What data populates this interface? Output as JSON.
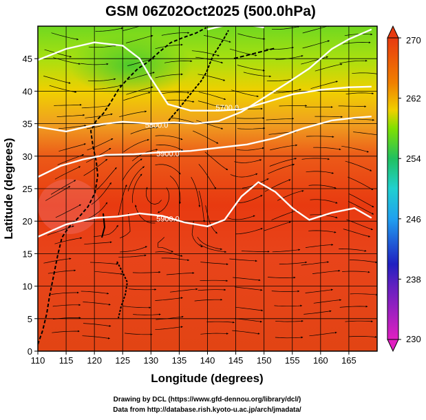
{
  "chart_data": {
    "type": "heatmap",
    "title": "GSM 06Z02Oct2025 (500.0hPa)",
    "xlabel": "Longitude (degrees)",
    "ylabel": "Latitude  (degrees)",
    "xlim": [
      110,
      170
    ],
    "ylim": [
      0,
      50
    ],
    "x_ticks": [
      "110",
      "115",
      "120",
      "125",
      "130",
      "135",
      "140",
      "145",
      "150",
      "155",
      "160",
      "165"
    ],
    "y_ticks": [
      "0",
      "5",
      "10",
      "15",
      "20",
      "25",
      "30",
      "35",
      "40",
      "45"
    ],
    "colorbar": {
      "label_values": [
        230,
        238,
        246,
        254,
        262,
        270
      ],
      "labels": [
        "230",
        "238",
        "246",
        "254",
        "262",
        "270"
      ],
      "range": [
        230,
        270
      ],
      "colors": [
        "#e020c0",
        "#2020c0",
        "#20a0f0",
        "#20c060",
        "#80e000",
        "#f0d000",
        "#f08000",
        "#e83a10"
      ]
    },
    "temperature_field_K": {
      "note": "approximate temperature read from shading",
      "lat_bands": [
        {
          "lat": 5,
          "value": 266
        },
        {
          "lat": 15,
          "value": 266
        },
        {
          "lat": 25,
          "value": 267
        },
        {
          "lat": 32,
          "value": 265
        },
        {
          "lat": 38,
          "value": 261
        },
        {
          "lat": 43,
          "value": 258
        },
        {
          "lat": 48,
          "value": 256
        }
      ]
    },
    "contours": [
      {
        "value": "5700.0",
        "label": "5700.0"
      },
      {
        "value": "5800.0",
        "label": "5800.0"
      },
      {
        "value": "5900.0",
        "label": "5900.0"
      },
      {
        "value": "5900.0",
        "label": "5900.0"
      }
    ],
    "contour_paths": [
      {
        "name": "5700",
        "points": [
          [
            110,
            44.8
          ],
          [
            115,
            46.5
          ],
          [
            120,
            47.5
          ],
          [
            125,
            47
          ],
          [
            128,
            45
          ],
          [
            130,
            42
          ],
          [
            133,
            38
          ],
          [
            137,
            37
          ],
          [
            142,
            37
          ],
          [
            146,
            37.2
          ],
          [
            150,
            38.2
          ],
          [
            155,
            39.5
          ],
          [
            160,
            40.2
          ],
          [
            165,
            40.6
          ],
          [
            169,
            40.7
          ]
        ],
        "label_at": [
          143.5,
          37.5
        ]
      },
      {
        "name": "5700b",
        "points": [
          [
            140,
            49.5
          ],
          [
            145,
            50.5
          ],
          [
            150,
            49.8
          ]
        ],
        "label_at": null
      },
      {
        "name": "5800",
        "points": [
          [
            110,
            34.5
          ],
          [
            115,
            33.8
          ],
          [
            120,
            34.8
          ],
          [
            125,
            35.3
          ],
          [
            130,
            35
          ],
          [
            134,
            35.2
          ],
          [
            138,
            35
          ],
          [
            142,
            35.4
          ],
          [
            146,
            36.8
          ],
          [
            150,
            39
          ],
          [
            154,
            41.2
          ],
          [
            158,
            43.5
          ],
          [
            162,
            46.5
          ],
          [
            165,
            48
          ],
          [
            169,
            49.5
          ]
        ],
        "label_at": [
          131,
          34.8
        ]
      },
      {
        "name": "5900-upper",
        "points": [
          [
            110,
            26.8
          ],
          [
            114,
            28.5
          ],
          [
            118,
            29.5
          ],
          [
            122,
            30.2
          ],
          [
            127,
            30.3
          ],
          [
            132,
            30.6
          ],
          [
            137,
            30.8
          ],
          [
            142,
            31.3
          ],
          [
            147,
            31.8
          ],
          [
            152,
            32.8
          ],
          [
            157,
            34.3
          ],
          [
            162,
            35.5
          ],
          [
            166,
            35.9
          ],
          [
            169,
            36.1
          ]
        ],
        "label_at": [
          133,
          30.4
        ]
      },
      {
        "name": "5900-lower",
        "points": [
          [
            110,
            17.6
          ],
          [
            115,
            19.5
          ],
          [
            120,
            20.5
          ],
          [
            124,
            20.7
          ],
          [
            128,
            21.2
          ],
          [
            132,
            20.8
          ],
          [
            136,
            19.8
          ],
          [
            140,
            19.2
          ],
          [
            143,
            20.2
          ],
          [
            146,
            23.8
          ],
          [
            149,
            26
          ],
          [
            152,
            24.5
          ],
          [
            155,
            22
          ],
          [
            158,
            20.2
          ],
          [
            162,
            21.3
          ],
          [
            166,
            22
          ],
          [
            169,
            20.5
          ]
        ],
        "label_at": [
          133,
          20.4
        ]
      }
    ],
    "wind": {
      "type": "streamlines",
      "regime": "mostly eastward-flowing streamlines with an anticyclone near 132E,26N and troughs near 150E"
    }
  },
  "credits": {
    "line1": "Drawing by DCL (https://www.gfd-dennou.org/library/dcl/)",
    "line2": "Data from http://database.rish.kyoto-u.ac.jp/arch/jmadata/"
  }
}
